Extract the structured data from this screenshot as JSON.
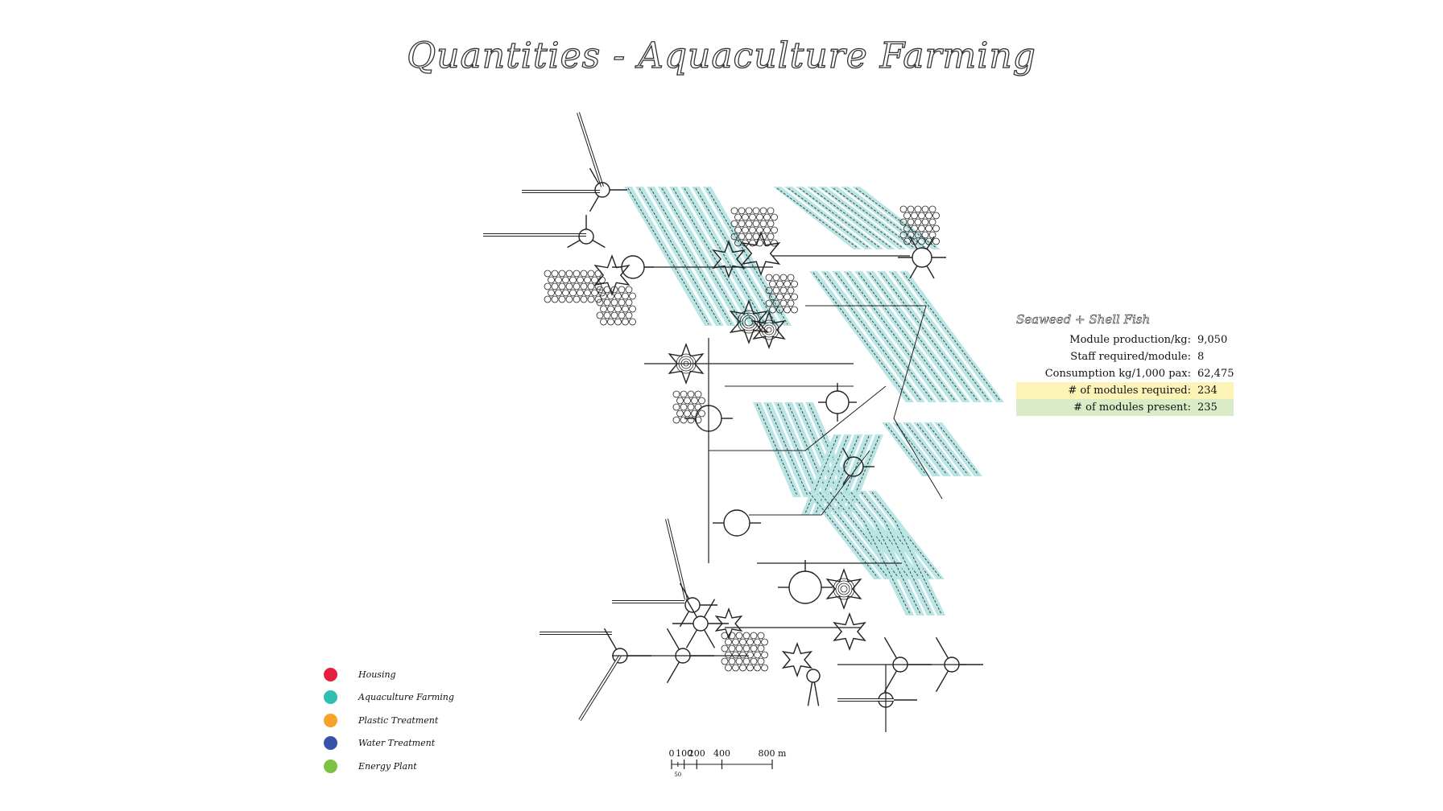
{
  "title": "Quantities - Aquaculture Farming",
  "info_panel": {
    "heading": "Seaweed + Shell Fish",
    "rows": [
      {
        "label": "Module production/kg:",
        "value": "9,050"
      },
      {
        "label": "Staff required/module:",
        "value": "8"
      },
      {
        "label": "Consumption kg/1,000 pax:",
        "value": "62,475"
      },
      {
        "label": "# of modules required:",
        "value": "234",
        "highlight": "#fbf4b6"
      },
      {
        "label": "# of modules present:",
        "value": "235",
        "highlight": "#d9ecc7"
      }
    ]
  },
  "legend": [
    {
      "label": "Housing",
      "color": "#e5203f"
    },
    {
      "label": "Aquaculture Farming",
      "color": "#2ebfb0"
    },
    {
      "label": "Plastic Treatment",
      "color": "#f7a229"
    },
    {
      "label": "Water Treatment",
      "color": "#3752a6"
    },
    {
      "label": "Energy Plant",
      "color": "#7cc243"
    }
  ],
  "scale_bar": {
    "labels": [
      "0",
      "100",
      "200",
      "400",
      "800 m"
    ],
    "minor_label": "50"
  },
  "colors": {
    "farm_fill": "#b9e5e4",
    "line": "#222222"
  }
}
